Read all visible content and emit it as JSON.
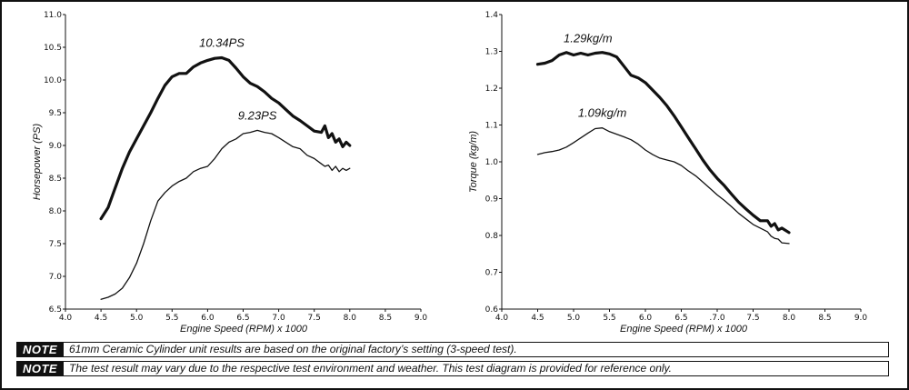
{
  "chart_data": [
    {
      "type": "line",
      "title": "",
      "xlabel": "Engine Speed (RPM) x 1000",
      "ylabel": "Horsepower (PS)",
      "xlim": [
        4.0,
        9.0
      ],
      "ylim": [
        6.5,
        11.0
      ],
      "xticks": [
        "4.0",
        "4.5",
        "5.0",
        "5.5",
        "6.0",
        "6.5",
        "7.0",
        "7.5",
        "8.0",
        "8.5",
        "9.0"
      ],
      "yticks": [
        "6.5",
        "7.0",
        "7.5",
        "8.0",
        "8.5",
        "9.0",
        "9.5",
        "10.0",
        "10.5",
        "11.0"
      ],
      "grid": false,
      "series": [
        {
          "label": "10.34PS",
          "style": "bold",
          "x": [
            4.5,
            4.6,
            4.7,
            4.8,
            4.9,
            5.0,
            5.1,
            5.2,
            5.3,
            5.4,
            5.5,
            5.6,
            5.7,
            5.8,
            5.9,
            6.0,
            6.1,
            6.2,
            6.3,
            6.4,
            6.5,
            6.6,
            6.7,
            6.8,
            6.9,
            7.0,
            7.1,
            7.2,
            7.3,
            7.4,
            7.5,
            7.6,
            7.65,
            7.7,
            7.75,
            7.8,
            7.85,
            7.9,
            7.95,
            8.0
          ],
          "values": [
            7.88,
            8.05,
            8.35,
            8.65,
            8.9,
            9.1,
            9.3,
            9.5,
            9.72,
            9.92,
            10.05,
            10.1,
            10.1,
            10.2,
            10.26,
            10.3,
            10.33,
            10.34,
            10.3,
            10.18,
            10.05,
            9.95,
            9.9,
            9.82,
            9.72,
            9.65,
            9.55,
            9.45,
            9.38,
            9.3,
            9.22,
            9.2,
            9.3,
            9.12,
            9.18,
            9.05,
            9.1,
            8.98,
            9.05,
            9.0
          ]
        },
        {
          "label": "9.23PS",
          "style": "thin",
          "x": [
            4.5,
            4.6,
            4.7,
            4.8,
            4.9,
            5.0,
            5.1,
            5.2,
            5.3,
            5.4,
            5.5,
            5.6,
            5.7,
            5.8,
            5.9,
            6.0,
            6.1,
            6.2,
            6.3,
            6.4,
            6.5,
            6.6,
            6.7,
            6.8,
            6.9,
            7.0,
            7.1,
            7.2,
            7.3,
            7.4,
            7.5,
            7.6,
            7.65,
            7.7,
            7.75,
            7.8,
            7.85,
            7.9,
            7.95,
            8.0
          ],
          "values": [
            6.65,
            6.68,
            6.73,
            6.82,
            6.98,
            7.2,
            7.5,
            7.85,
            8.15,
            8.28,
            8.38,
            8.45,
            8.5,
            8.6,
            8.65,
            8.68,
            8.8,
            8.95,
            9.05,
            9.1,
            9.18,
            9.2,
            9.23,
            9.2,
            9.18,
            9.12,
            9.05,
            8.98,
            8.95,
            8.85,
            8.8,
            8.72,
            8.68,
            8.7,
            8.62,
            8.68,
            8.6,
            8.65,
            8.62,
            8.65
          ]
        }
      ],
      "annotations": [
        {
          "text": "10.34PS",
          "x": 6.2,
          "y": 10.34
        },
        {
          "text": "9.23PS",
          "x": 6.7,
          "y": 9.23
        }
      ]
    },
    {
      "type": "line",
      "title": "",
      "xlabel": "Engine Speed (RPM) x 1000",
      "ylabel": "Torque (kg/m)",
      "xlim": [
        4.0,
        9.0
      ],
      "ylim": [
        0.6,
        1.4
      ],
      "xticks": [
        "4.0",
        "4.5",
        "5.0",
        "5.5",
        "6.0",
        "6.5",
        ".7.0",
        "7.5",
        "8.0",
        "8.5",
        "9.0"
      ],
      "yticks": [
        "0.6",
        "0.7",
        "0.8",
        "0.9",
        "1.0",
        "1.1",
        "1.2",
        "1.3",
        "1.4"
      ],
      "grid": false,
      "series": [
        {
          "label": "1.29kg/m",
          "style": "bold",
          "x": [
            4.5,
            4.6,
            4.7,
            4.8,
            4.9,
            5.0,
            5.1,
            5.2,
            5.3,
            5.4,
            5.5,
            5.6,
            5.7,
            5.8,
            5.9,
            6.0,
            6.1,
            6.2,
            6.3,
            6.4,
            6.5,
            6.6,
            6.7,
            6.8,
            6.9,
            7.0,
            7.1,
            7.2,
            7.3,
            7.4,
            7.5,
            7.6,
            7.7,
            7.75,
            7.8,
            7.85,
            7.9,
            8.0
          ],
          "values": [
            1.265,
            1.268,
            1.275,
            1.29,
            1.297,
            1.29,
            1.295,
            1.29,
            1.295,
            1.297,
            1.293,
            1.285,
            1.26,
            1.235,
            1.228,
            1.215,
            1.195,
            1.175,
            1.152,
            1.125,
            1.095,
            1.065,
            1.035,
            1.005,
            0.978,
            0.955,
            0.935,
            0.912,
            0.89,
            0.872,
            0.855,
            0.84,
            0.84,
            0.825,
            0.832,
            0.815,
            0.82,
            0.808
          ]
        },
        {
          "label": "1.09kg/m",
          "style": "thin",
          "x": [
            4.5,
            4.6,
            4.7,
            4.8,
            4.9,
            5.0,
            5.1,
            5.2,
            5.3,
            5.4,
            5.5,
            5.6,
            5.7,
            5.8,
            5.9,
            6.0,
            6.1,
            6.2,
            6.3,
            6.4,
            6.5,
            6.6,
            6.7,
            6.8,
            6.9,
            7.0,
            7.1,
            7.2,
            7.3,
            7.4,
            7.5,
            7.6,
            7.7,
            7.75,
            7.8,
            7.85,
            7.9,
            8.0
          ],
          "values": [
            1.02,
            1.025,
            1.028,
            1.032,
            1.04,
            1.052,
            1.065,
            1.078,
            1.09,
            1.092,
            1.082,
            1.075,
            1.068,
            1.06,
            1.048,
            1.032,
            1.02,
            1.01,
            1.005,
            1.0,
            0.99,
            0.975,
            0.962,
            0.945,
            0.928,
            0.91,
            0.895,
            0.878,
            0.86,
            0.845,
            0.83,
            0.82,
            0.81,
            0.798,
            0.792,
            0.79,
            0.78,
            0.778
          ]
        }
      ],
      "annotations": [
        {
          "text": "1.29kg/m",
          "x": 5.2,
          "y": 1.295
        },
        {
          "text": "1.09kg/m",
          "x": 5.4,
          "y": 1.092
        }
      ]
    }
  ],
  "notes": [
    {
      "tag": "NOTE",
      "text": "61mm Ceramic Cylinder unit results are based on the original factory’s setting (3-speed test)."
    },
    {
      "tag": "NOTE",
      "text": "The test result may vary due to the respective test environment and weather. This test diagram is provided for reference only."
    }
  ]
}
